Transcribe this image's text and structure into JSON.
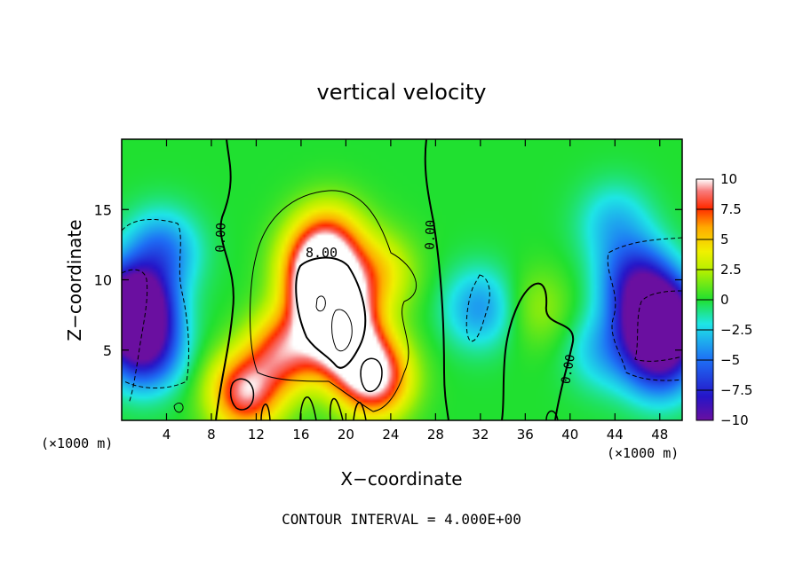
{
  "chart_data": {
    "type": "heatmap",
    "title": "vertical velocity",
    "xlabel": "X−coordinate",
    "ylabel": "Z−coordinate",
    "x_unit_left": "(×1000 m)",
    "x_unit_right": "(×1000 m)",
    "footer": "CONTOUR INTERVAL = 4.000E+00",
    "xlim": [
      0,
      50
    ],
    "ylim": [
      0,
      20
    ],
    "x_ticks": [
      "4",
      "8",
      "12",
      "16",
      "20",
      "24",
      "28",
      "32",
      "36",
      "40",
      "44",
      "48"
    ],
    "y_ticks": [
      "5",
      "10",
      "15"
    ],
    "colorbar": {
      "range": [
        -10,
        10
      ],
      "tick_labels": [
        "10",
        "7.5",
        "5",
        "2.5",
        "0",
        "−2.5",
        "−5",
        "−7.5",
        "−10"
      ]
    },
    "contour_labels": [
      "8.00",
      "0.00",
      "0.00",
      "0.00"
    ],
    "features": [
      {
        "x": 18.5,
        "z": 8.5,
        "w": 14
      },
      {
        "x": 20,
        "z": 5.5,
        "w": 10
      },
      {
        "x": 17.5,
        "z": 11,
        "w": 8
      },
      {
        "x": 18.5,
        "z": 13,
        "w": 5
      },
      {
        "x": 14.5,
        "z": 5,
        "w": 7.5
      },
      {
        "x": 22.5,
        "z": 3,
        "w": 10
      },
      {
        "x": 11,
        "z": 2,
        "w": 9
      },
      {
        "x": 23,
        "z": 10.5,
        "w": 4
      },
      {
        "x": 37,
        "z": 8,
        "w": 2
      },
      {
        "x": 1,
        "z": 8,
        "w": -16
      },
      {
        "x": 2,
        "z": 5,
        "w": -8
      },
      {
        "x": 3.5,
        "z": 12,
        "w": -5
      },
      {
        "x": 48,
        "z": 7,
        "w": -16
      },
      {
        "x": 46,
        "z": 10,
        "w": -7
      },
      {
        "x": 48,
        "z": 4,
        "w": -6
      },
      {
        "x": 32,
        "z": 8,
        "w": -4
      },
      {
        "x": 43,
        "z": 5,
        "w": -3
      },
      {
        "x": 44,
        "z": 14,
        "w": -3
      }
    ]
  }
}
